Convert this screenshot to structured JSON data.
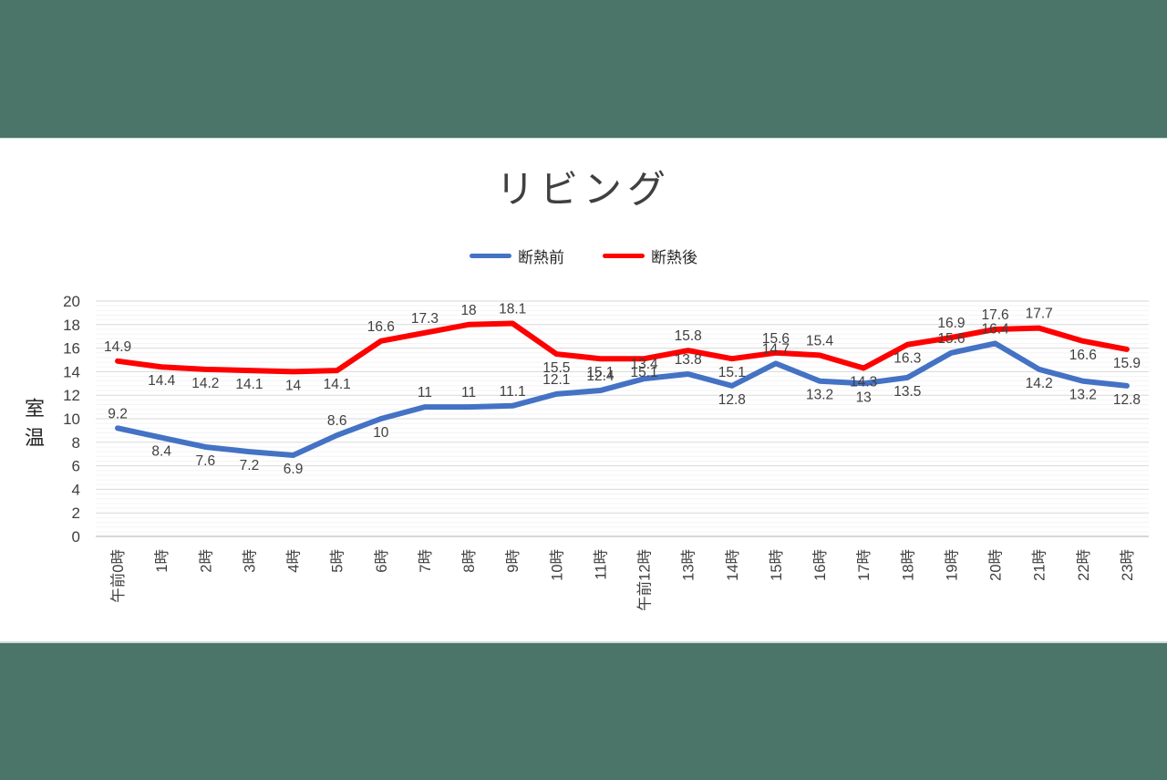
{
  "page": {
    "letterbox_band_color": "#4a7568",
    "content_background": "#ffffff"
  },
  "chart_data": {
    "type": "line",
    "title": "リビング",
    "ylabel": "室温",
    "xlabel": "",
    "categories": [
      "午前0時",
      "1時",
      "2時",
      "3時",
      "4時",
      "5時",
      "6時",
      "7時",
      "8時",
      "9時",
      "10時",
      "11時",
      "午前12時",
      "13時",
      "14時",
      "15時",
      "16時",
      "17時",
      "18時",
      "19時",
      "20時",
      "21時",
      "22時",
      "23時"
    ],
    "series": [
      {
        "name": "断熱前",
        "color": "#4472C4",
        "values": [
          9.2,
          8.4,
          7.6,
          7.2,
          6.9,
          8.6,
          10,
          11,
          11,
          11.1,
          12.1,
          12.4,
          13.4,
          13.8,
          12.8,
          14.7,
          13.2,
          13,
          13.5,
          15.6,
          16.4,
          14.2,
          13.2,
          12.8
        ]
      },
      {
        "name": "断熱後",
        "color": "#FF0000",
        "values": [
          14.9,
          14.4,
          14.2,
          14.1,
          14,
          14.1,
          16.6,
          17.3,
          18,
          18.1,
          15.5,
          15.1,
          15.1,
          15.8,
          15.1,
          15.6,
          15.4,
          14.3,
          16.3,
          16.9,
          17.6,
          17.7,
          16.6,
          15.9
        ]
      }
    ],
    "ylim": [
      0,
      20
    ],
    "ytick_step": 2,
    "yticks": [
      "0",
      "2",
      "4",
      "6",
      "8",
      "10",
      "12",
      "14",
      "16",
      "18",
      "20"
    ],
    "grid": "horizontal",
    "legend_position": "top",
    "data_labels": true,
    "data_label_color": "#404040",
    "tick_label_color": "#404040",
    "gridline_color": "#d9d9d9",
    "axis_line_color": "#bfbfbf"
  }
}
